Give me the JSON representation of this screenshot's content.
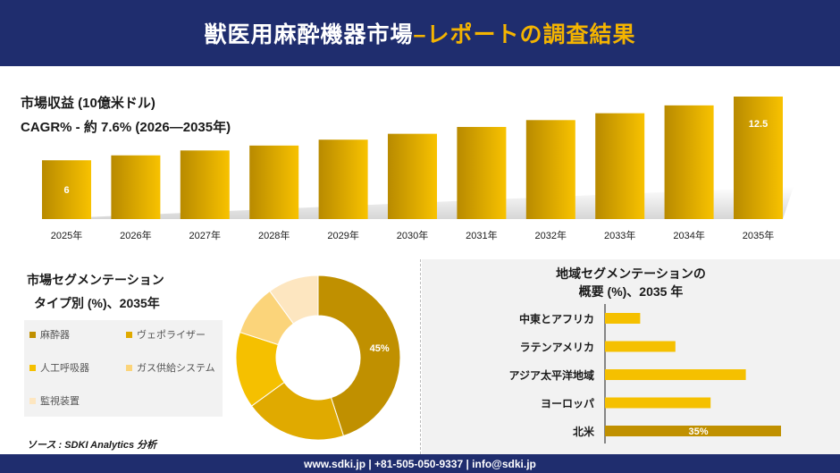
{
  "header": {
    "title_main": "獣医用麻酔機器市場",
    "title_sub": " –レポートの調査結果"
  },
  "top": {
    "line1": "市場収益 (10億米ドル)",
    "line2": "CAGR% - 約 7.6% (2026—2035年)"
  },
  "colors": {
    "navy": "#1f2d6e",
    "gold": "#f4b400",
    "bar_light": "#f5c000",
    "bar_dark": "#c09000"
  },
  "chart_data": [
    {
      "type": "bar",
      "categories": [
        "2025年",
        "2026年",
        "2027年",
        "2028年",
        "2029年",
        "2030年",
        "2031年",
        "2032年",
        "2033年",
        "2034年",
        "2035年"
      ],
      "values": [
        6,
        6.5,
        7.0,
        7.5,
        8.1,
        8.7,
        9.4,
        10.1,
        10.8,
        11.6,
        12.5
      ],
      "data_labels": [
        "6",
        "",
        "",
        "",
        "",
        "",
        "",
        "",
        "",
        "",
        "12.5"
      ],
      "ylim": [
        0,
        12.5
      ]
    },
    {
      "type": "pie",
      "title": "市場セグメンテーション タイプ別 (%)、2035年",
      "categories": [
        "麻酔器",
        "ヴェポライザー",
        "人工呼吸器",
        "ガス供給システム",
        "監視装置"
      ],
      "values": [
        45,
        20,
        15,
        10,
        10
      ],
      "colors": [
        "#c09000",
        "#e0aa00",
        "#f5c000",
        "#fbd47a",
        "#fde6c0"
      ],
      "data_labels": [
        "45%",
        "",
        "",
        "",
        ""
      ]
    },
    {
      "type": "bar",
      "orientation": "horizontal",
      "title": "地域セグメンテーションの 概要 (%)、2035 年",
      "categories": [
        "中東とアフリカ",
        "ラテンアメリカ",
        "アジア太平洋地域",
        "ヨーロッパ",
        "北米"
      ],
      "values": [
        7,
        14,
        28,
        21,
        35
      ],
      "data_labels": [
        "",
        "",
        "",
        "",
        "35%"
      ],
      "xlim": [
        0,
        35
      ]
    }
  ],
  "legend": {
    "items": [
      "麻酔器",
      "ヴェポライザー",
      "人工呼吸器",
      "ガス供給システム",
      "監視装置"
    ]
  },
  "source": "ソース : SDKI Analytics 分析",
  "footer": "www.sdki.jp | +81-505-050-9337 | info@sdki.jp"
}
